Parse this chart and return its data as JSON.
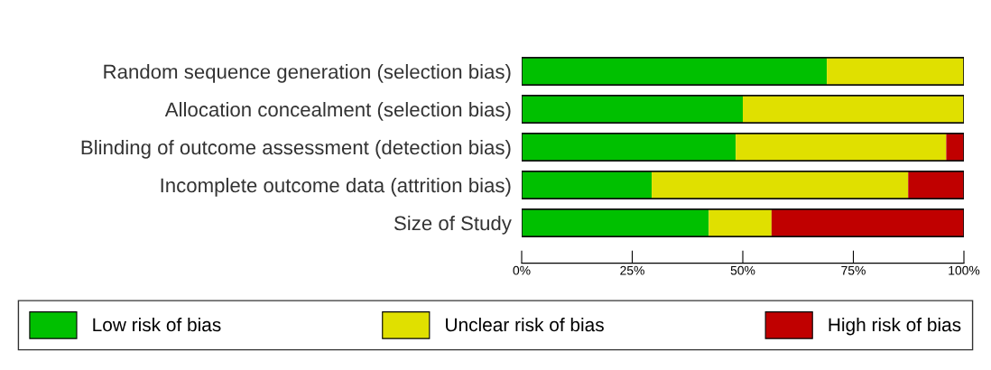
{
  "chart_data": {
    "type": "bar",
    "orientation": "horizontal",
    "stacked": true,
    "categories": [
      "Random sequence generation (selection bias)",
      "Allocation concealment (selection bias)",
      "Blinding of outcome assessment (detection bias)",
      "Incomplete outcome data (attrition bias)",
      "Size of Study"
    ],
    "series": [
      {
        "name": "Low risk of bias",
        "color": "#00c000",
        "values": [
          69,
          50,
          48.4,
          29.4,
          42.3
        ]
      },
      {
        "name": "Unclear risk of bias",
        "color": "#e0e000",
        "values": [
          31,
          50,
          47.6,
          58,
          14.2
        ]
      },
      {
        "name": "High risk of bias",
        "color": "#c00000",
        "values": [
          0,
          0,
          4,
          12.6,
          43.5
        ]
      }
    ],
    "xlim": [
      0,
      100
    ],
    "xticks": [
      {
        "value": 0,
        "label": "0%"
      },
      {
        "value": 25,
        "label": "25%"
      },
      {
        "value": 50,
        "label": "50%"
      },
      {
        "value": 75,
        "label": "75%"
      },
      {
        "value": 100,
        "label": "100%"
      }
    ],
    "grid": false,
    "legend": "bottom"
  }
}
